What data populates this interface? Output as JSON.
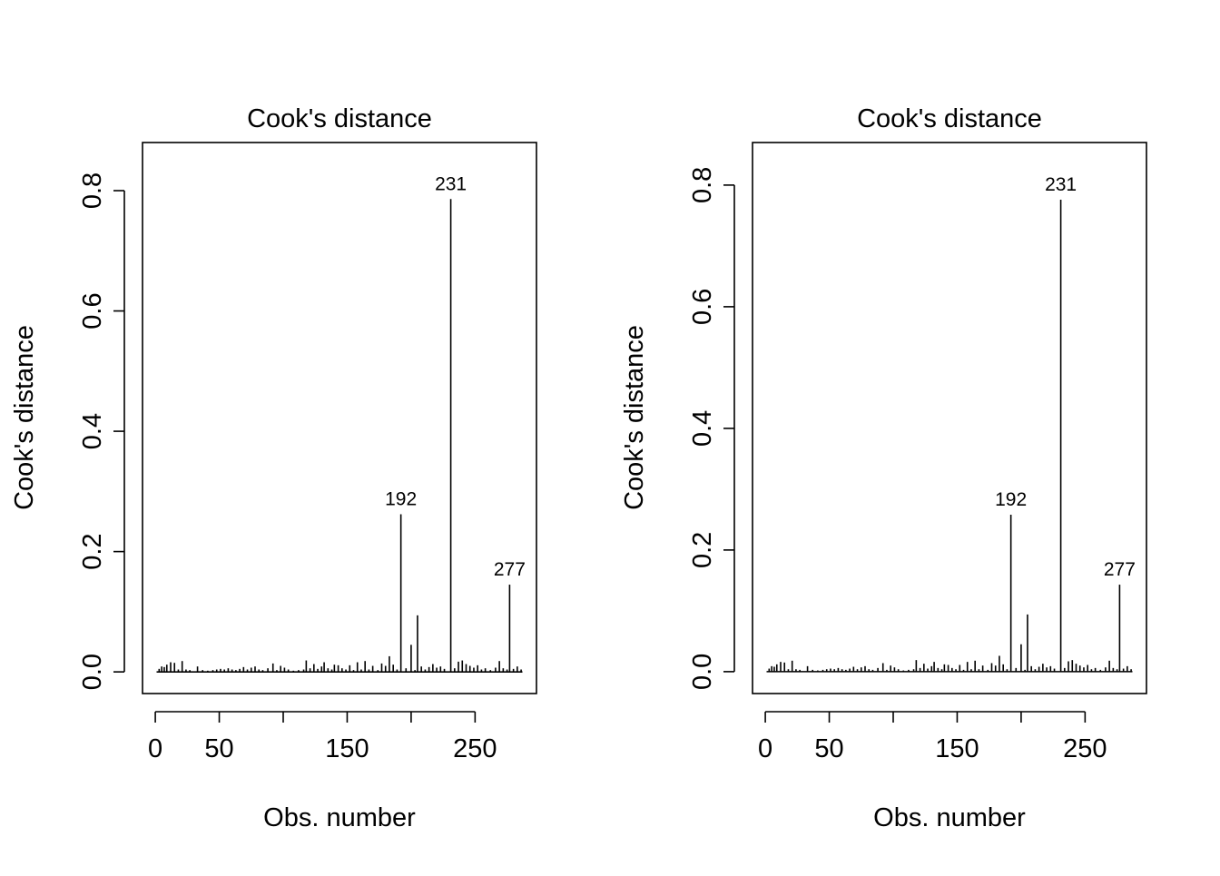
{
  "chart_data": [
    {
      "type": "bar",
      "title": "Cook's distance",
      "xlabel": "Obs. number",
      "ylabel": "Cook's distance",
      "xlim": [
        -10,
        298
      ],
      "ylim": [
        -0.036,
        0.88
      ],
      "xticks": [
        0,
        50,
        100,
        150,
        200,
        250
      ],
      "xtick_labels": [
        "0",
        "50",
        "",
        "150",
        "",
        "250"
      ],
      "yticks": [
        0.0,
        0.2,
        0.4,
        0.6,
        0.8
      ],
      "ytick_labels": [
        "0.0",
        "0.2",
        "0.4",
        "0.6",
        "0.8"
      ],
      "grid": false,
      "n_obs": 287,
      "points": [
        {
          "x": 3,
          "y": 0.005
        },
        {
          "x": 5,
          "y": 0.009
        },
        {
          "x": 7,
          "y": 0.008
        },
        {
          "x": 9,
          "y": 0.012
        },
        {
          "x": 12,
          "y": 0.016
        },
        {
          "x": 15,
          "y": 0.015
        },
        {
          "x": 18,
          "y": 0.004
        },
        {
          "x": 21,
          "y": 0.018
        },
        {
          "x": 24,
          "y": 0.004
        },
        {
          "x": 27,
          "y": 0.003
        },
        {
          "x": 33,
          "y": 0.009
        },
        {
          "x": 37,
          "y": 0.003
        },
        {
          "x": 41,
          "y": 0.002
        },
        {
          "x": 45,
          "y": 0.003
        },
        {
          "x": 48,
          "y": 0.004
        },
        {
          "x": 51,
          "y": 0.005
        },
        {
          "x": 54,
          "y": 0.004
        },
        {
          "x": 57,
          "y": 0.006
        },
        {
          "x": 60,
          "y": 0.004
        },
        {
          "x": 63,
          "y": 0.003
        },
        {
          "x": 66,
          "y": 0.005
        },
        {
          "x": 69,
          "y": 0.008
        },
        {
          "x": 72,
          "y": 0.004
        },
        {
          "x": 75,
          "y": 0.007
        },
        {
          "x": 78,
          "y": 0.009
        },
        {
          "x": 81,
          "y": 0.004
        },
        {
          "x": 84,
          "y": 0.003
        },
        {
          "x": 88,
          "y": 0.006
        },
        {
          "x": 92,
          "y": 0.014
        },
        {
          "x": 95,
          "y": 0.003
        },
        {
          "x": 98,
          "y": 0.01
        },
        {
          "x": 101,
          "y": 0.007
        },
        {
          "x": 104,
          "y": 0.004
        },
        {
          "x": 108,
          "y": 0.002
        },
        {
          "x": 112,
          "y": 0.003
        },
        {
          "x": 116,
          "y": 0.004
        },
        {
          "x": 118,
          "y": 0.019
        },
        {
          "x": 121,
          "y": 0.006
        },
        {
          "x": 124,
          "y": 0.013
        },
        {
          "x": 127,
          "y": 0.005
        },
        {
          "x": 130,
          "y": 0.009
        },
        {
          "x": 132,
          "y": 0.016
        },
        {
          "x": 135,
          "y": 0.006
        },
        {
          "x": 138,
          "y": 0.004
        },
        {
          "x": 140,
          "y": 0.012
        },
        {
          "x": 143,
          "y": 0.011
        },
        {
          "x": 146,
          "y": 0.006
        },
        {
          "x": 149,
          "y": 0.004
        },
        {
          "x": 152,
          "y": 0.011
        },
        {
          "x": 155,
          "y": 0.003
        },
        {
          "x": 158,
          "y": 0.016
        },
        {
          "x": 161,
          "y": 0.004
        },
        {
          "x": 164,
          "y": 0.018
        },
        {
          "x": 167,
          "y": 0.004
        },
        {
          "x": 170,
          "y": 0.01
        },
        {
          "x": 174,
          "y": 0.003
        },
        {
          "x": 177,
          "y": 0.014
        },
        {
          "x": 180,
          "y": 0.01
        },
        {
          "x": 183,
          "y": 0.026
        },
        {
          "x": 186,
          "y": 0.012
        },
        {
          "x": 189,
          "y": 0.004
        },
        {
          "x": 192,
          "y": 0.262
        },
        {
          "x": 196,
          "y": 0.006
        },
        {
          "x": 200,
          "y": 0.045
        },
        {
          "x": 203,
          "y": 0.003
        },
        {
          "x": 205,
          "y": 0.094
        },
        {
          "x": 208,
          "y": 0.009
        },
        {
          "x": 211,
          "y": 0.004
        },
        {
          "x": 214,
          "y": 0.008
        },
        {
          "x": 217,
          "y": 0.013
        },
        {
          "x": 220,
          "y": 0.007
        },
        {
          "x": 223,
          "y": 0.009
        },
        {
          "x": 226,
          "y": 0.005
        },
        {
          "x": 231,
          "y": 0.786
        },
        {
          "x": 234,
          "y": 0.006
        },
        {
          "x": 237,
          "y": 0.017
        },
        {
          "x": 240,
          "y": 0.019
        },
        {
          "x": 243,
          "y": 0.013
        },
        {
          "x": 246,
          "y": 0.01
        },
        {
          "x": 249,
          "y": 0.007
        },
        {
          "x": 252,
          "y": 0.011
        },
        {
          "x": 255,
          "y": 0.004
        },
        {
          "x": 258,
          "y": 0.006
        },
        {
          "x": 262,
          "y": 0.003
        },
        {
          "x": 266,
          "y": 0.007
        },
        {
          "x": 269,
          "y": 0.018
        },
        {
          "x": 272,
          "y": 0.006
        },
        {
          "x": 275,
          "y": 0.004
        },
        {
          "x": 277,
          "y": 0.145
        },
        {
          "x": 280,
          "y": 0.005
        },
        {
          "x": 283,
          "y": 0.009
        },
        {
          "x": 286,
          "y": 0.004
        }
      ],
      "annotations": [
        {
          "x": 192,
          "y": 0.262,
          "label": "192"
        },
        {
          "x": 231,
          "y": 0.786,
          "label": "231"
        },
        {
          "x": 277,
          "y": 0.145,
          "label": "277"
        }
      ]
    },
    {
      "type": "bar",
      "title": "Cook's distance",
      "xlabel": "Obs. number",
      "ylabel": "Cook's distance",
      "xlim": [
        -10,
        298
      ],
      "ylim": [
        -0.036,
        0.87
      ],
      "xticks": [
        0,
        50,
        100,
        150,
        200,
        250
      ],
      "xtick_labels": [
        "0",
        "50",
        "",
        "150",
        "",
        "250"
      ],
      "yticks": [
        0.0,
        0.2,
        0.4,
        0.6,
        0.8
      ],
      "ytick_labels": [
        "0.0",
        "0.2",
        "0.4",
        "0.6",
        "0.8"
      ],
      "grid": false,
      "n_obs": 287,
      "points": [
        {
          "x": 3,
          "y": 0.005
        },
        {
          "x": 5,
          "y": 0.009
        },
        {
          "x": 7,
          "y": 0.008
        },
        {
          "x": 9,
          "y": 0.012
        },
        {
          "x": 12,
          "y": 0.016
        },
        {
          "x": 15,
          "y": 0.015
        },
        {
          "x": 18,
          "y": 0.004
        },
        {
          "x": 21,
          "y": 0.018
        },
        {
          "x": 24,
          "y": 0.004
        },
        {
          "x": 27,
          "y": 0.003
        },
        {
          "x": 33,
          "y": 0.009
        },
        {
          "x": 37,
          "y": 0.003
        },
        {
          "x": 41,
          "y": 0.002
        },
        {
          "x": 45,
          "y": 0.003
        },
        {
          "x": 48,
          "y": 0.004
        },
        {
          "x": 51,
          "y": 0.005
        },
        {
          "x": 54,
          "y": 0.004
        },
        {
          "x": 57,
          "y": 0.006
        },
        {
          "x": 60,
          "y": 0.004
        },
        {
          "x": 63,
          "y": 0.003
        },
        {
          "x": 66,
          "y": 0.005
        },
        {
          "x": 69,
          "y": 0.008
        },
        {
          "x": 72,
          "y": 0.004
        },
        {
          "x": 75,
          "y": 0.007
        },
        {
          "x": 78,
          "y": 0.009
        },
        {
          "x": 81,
          "y": 0.004
        },
        {
          "x": 84,
          "y": 0.003
        },
        {
          "x": 88,
          "y": 0.006
        },
        {
          "x": 92,
          "y": 0.014
        },
        {
          "x": 95,
          "y": 0.003
        },
        {
          "x": 98,
          "y": 0.01
        },
        {
          "x": 101,
          "y": 0.007
        },
        {
          "x": 104,
          "y": 0.004
        },
        {
          "x": 108,
          "y": 0.002
        },
        {
          "x": 112,
          "y": 0.003
        },
        {
          "x": 116,
          "y": 0.004
        },
        {
          "x": 118,
          "y": 0.019
        },
        {
          "x": 121,
          "y": 0.006
        },
        {
          "x": 124,
          "y": 0.013
        },
        {
          "x": 127,
          "y": 0.005
        },
        {
          "x": 130,
          "y": 0.009
        },
        {
          "x": 132,
          "y": 0.016
        },
        {
          "x": 135,
          "y": 0.006
        },
        {
          "x": 138,
          "y": 0.004
        },
        {
          "x": 140,
          "y": 0.012
        },
        {
          "x": 143,
          "y": 0.011
        },
        {
          "x": 146,
          "y": 0.006
        },
        {
          "x": 149,
          "y": 0.004
        },
        {
          "x": 152,
          "y": 0.011
        },
        {
          "x": 155,
          "y": 0.003
        },
        {
          "x": 158,
          "y": 0.016
        },
        {
          "x": 161,
          "y": 0.004
        },
        {
          "x": 164,
          "y": 0.018
        },
        {
          "x": 167,
          "y": 0.004
        },
        {
          "x": 170,
          "y": 0.01
        },
        {
          "x": 174,
          "y": 0.003
        },
        {
          "x": 177,
          "y": 0.014
        },
        {
          "x": 180,
          "y": 0.01
        },
        {
          "x": 183,
          "y": 0.026
        },
        {
          "x": 186,
          "y": 0.012
        },
        {
          "x": 189,
          "y": 0.004
        },
        {
          "x": 192,
          "y": 0.258
        },
        {
          "x": 196,
          "y": 0.006
        },
        {
          "x": 200,
          "y": 0.045
        },
        {
          "x": 203,
          "y": 0.003
        },
        {
          "x": 205,
          "y": 0.094
        },
        {
          "x": 208,
          "y": 0.009
        },
        {
          "x": 211,
          "y": 0.004
        },
        {
          "x": 214,
          "y": 0.008
        },
        {
          "x": 217,
          "y": 0.013
        },
        {
          "x": 220,
          "y": 0.007
        },
        {
          "x": 223,
          "y": 0.009
        },
        {
          "x": 226,
          "y": 0.005
        },
        {
          "x": 231,
          "y": 0.776
        },
        {
          "x": 234,
          "y": 0.006
        },
        {
          "x": 237,
          "y": 0.017
        },
        {
          "x": 240,
          "y": 0.019
        },
        {
          "x": 243,
          "y": 0.013
        },
        {
          "x": 246,
          "y": 0.01
        },
        {
          "x": 249,
          "y": 0.007
        },
        {
          "x": 252,
          "y": 0.011
        },
        {
          "x": 255,
          "y": 0.004
        },
        {
          "x": 258,
          "y": 0.006
        },
        {
          "x": 262,
          "y": 0.003
        },
        {
          "x": 266,
          "y": 0.007
        },
        {
          "x": 269,
          "y": 0.018
        },
        {
          "x": 272,
          "y": 0.006
        },
        {
          "x": 275,
          "y": 0.004
        },
        {
          "x": 277,
          "y": 0.143
        },
        {
          "x": 280,
          "y": 0.005
        },
        {
          "x": 283,
          "y": 0.009
        },
        {
          "x": 286,
          "y": 0.004
        }
      ],
      "annotations": [
        {
          "x": 192,
          "y": 0.258,
          "label": "192"
        },
        {
          "x": 231,
          "y": 0.776,
          "label": "231"
        },
        {
          "x": 277,
          "y": 0.143,
          "label": "277"
        }
      ]
    }
  ]
}
